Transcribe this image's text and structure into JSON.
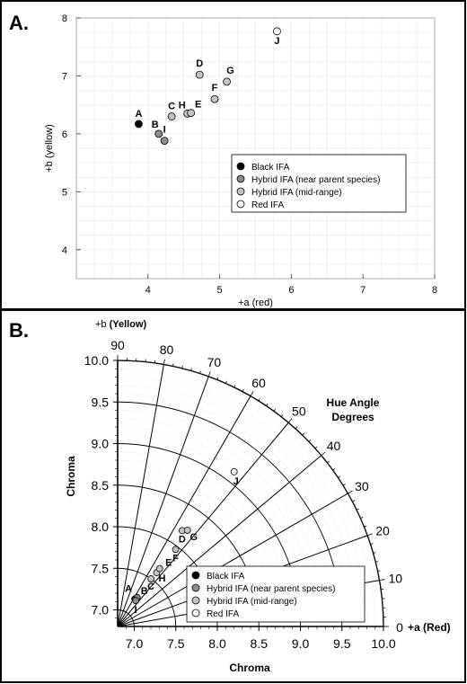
{
  "colors": {
    "black_ifa": "#000000",
    "hybrid_near": "#8c8c8c",
    "hybrid_mid": "#c4c4c4",
    "red_ifa": "#ffffff",
    "grid": "#e6e6e6"
  },
  "legend_items": [
    {
      "label": "Black IFA",
      "group": "black"
    },
    {
      "label": "Hybrid IFA (near parent species)",
      "group": "near"
    },
    {
      "label": "Hybrid IFA (mid-range)",
      "group": "mid"
    },
    {
      "label": "Red IFA",
      "group": "red"
    }
  ],
  "panel_a": {
    "panel_label": "A.",
    "xlabel": "+a (red)",
    "ylabel": "+b (yellow)"
  },
  "panel_b": {
    "panel_label": "B.",
    "top_axis_label": "+b",
    "top_axis_label_bold": "(Yellow)",
    "right_axis_label": "+a (Red)",
    "hue_title_line1": "Hue Angle",
    "hue_title_line2": "Degrees",
    "xlabel": "Chroma",
    "ylabel": "Chroma"
  },
  "chart_data": [
    {
      "type": "scatter",
      "xlabel": "+a (red)",
      "ylabel": "+b (yellow)",
      "xlim": [
        3,
        8
      ],
      "ylim": [
        3.5,
        8
      ],
      "xticks": [
        4,
        5,
        6,
        7,
        8
      ],
      "yticks": [
        4,
        5,
        6,
        7,
        8
      ],
      "grid": true,
      "legend_placement": "middle-right",
      "points": [
        {
          "label": "A",
          "x": 3.87,
          "y": 6.17,
          "group": "black"
        },
        {
          "label": "B",
          "x": 4.15,
          "y": 6.0,
          "group": "near"
        },
        {
          "label": "I",
          "x": 4.23,
          "y": 5.88,
          "group": "near"
        },
        {
          "label": "C",
          "x": 4.33,
          "y": 6.3,
          "group": "mid"
        },
        {
          "label": "H",
          "x": 4.55,
          "y": 6.35,
          "group": "mid"
        },
        {
          "label": "E",
          "x": 4.6,
          "y": 6.36,
          "group": "mid"
        },
        {
          "label": "D",
          "x": 4.72,
          "y": 7.02,
          "group": "mid"
        },
        {
          "label": "F",
          "x": 4.93,
          "y": 6.6,
          "group": "mid"
        },
        {
          "label": "G",
          "x": 5.1,
          "y": 6.9,
          "group": "mid"
        },
        {
          "label": "J",
          "x": 5.8,
          "y": 7.77,
          "group": "red"
        }
      ]
    },
    {
      "type": "scatter",
      "xlabel": "Chroma",
      "ylabel": "Chroma",
      "radial_range": [
        6.8,
        10.0
      ],
      "radial_ticks": [
        7.0,
        7.5,
        8.0,
        8.5,
        9.0,
        9.5,
        10.0
      ],
      "angle_ticks": [
        0,
        10,
        20,
        30,
        40,
        50,
        60,
        70,
        80,
        90
      ],
      "legend_placement": "bottom-right",
      "points": [
        {
          "label": "A",
          "chroma": 7.19,
          "hue": 58,
          "group": "black"
        },
        {
          "label": "B",
          "chroma": 7.22,
          "hue": 56,
          "group": "near"
        },
        {
          "label": "I",
          "chroma": 7.18,
          "hue": 55,
          "group": "near"
        },
        {
          "label": "C",
          "chroma": 7.5,
          "hue": 55,
          "group": "mid"
        },
        {
          "label": "H",
          "chroma": 7.6,
          "hue": 54,
          "group": "mid"
        },
        {
          "label": "E",
          "chroma": 7.66,
          "hue": 54,
          "group": "mid"
        },
        {
          "label": "D",
          "chroma": 8.19,
          "hue": 56,
          "group": "mid"
        },
        {
          "label": "F",
          "chroma": 7.96,
          "hue": 53,
          "group": "mid"
        },
        {
          "label": "G",
          "chroma": 8.23,
          "hue": 54,
          "group": "mid"
        },
        {
          "label": "J",
          "chroma": 9.13,
          "hue": 53,
          "group": "red"
        }
      ]
    }
  ]
}
